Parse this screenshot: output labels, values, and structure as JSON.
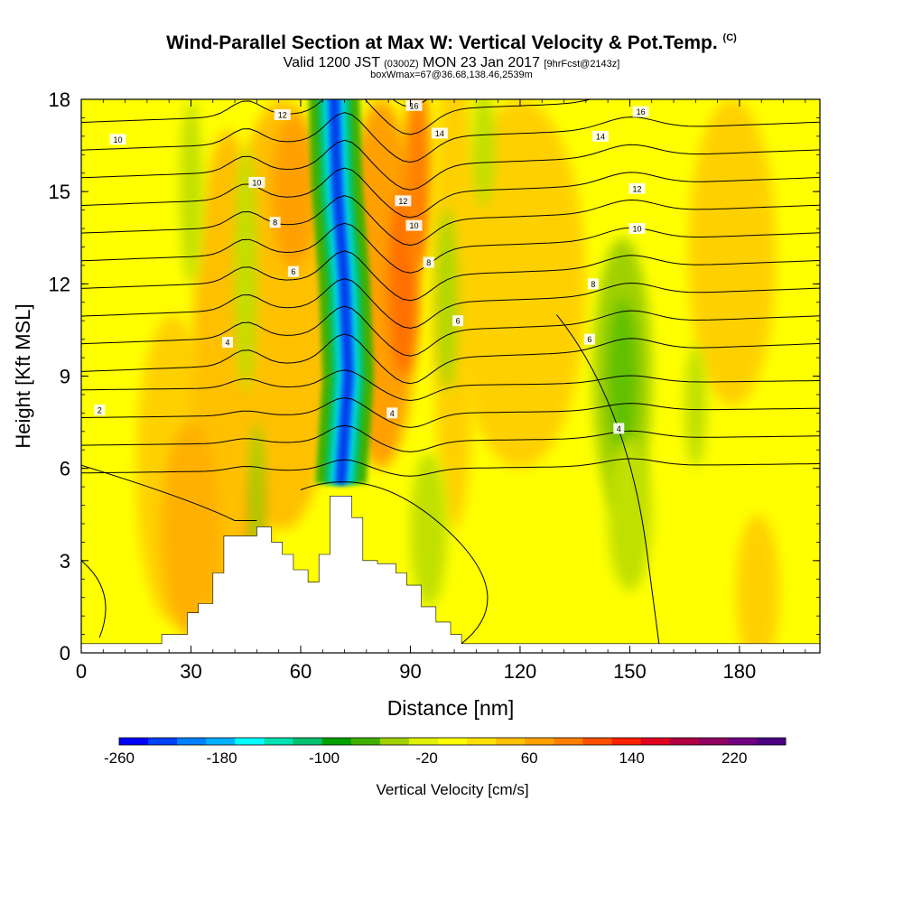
{
  "header": {
    "title_main": "Wind-Parallel Section at Max W: Vertical Velocity & Pot.Temp.",
    "title_tag": "(C)",
    "line2_a": "Valid 1200 JST",
    "line2_b": "(0300Z)",
    "line2_c": "MON 23 Jan 2017",
    "line2_d": "[9hrFcst@2143z]",
    "line3": "boxWmax=67@36.68,138.46,2539m"
  },
  "chart_data": {
    "type": "heatmap",
    "xlabel": "Distance [nm]",
    "ylabel": "Height [Kft MSL]",
    "xlim": [
      0,
      202
    ],
    "ylim": [
      0,
      18
    ],
    "x_ticks": [
      0,
      30,
      60,
      90,
      120,
      150,
      180
    ],
    "y_ticks": [
      0,
      3,
      6,
      9,
      12,
      15,
      18
    ],
    "colorbar": {
      "label": "Vertical Velocity [cm/s]",
      "min": -260,
      "max": 260,
      "tick_labels": [
        -260,
        -180,
        -100,
        -20,
        60,
        140,
        220
      ],
      "colors": [
        "#0000ff",
        "#0040ff",
        "#0080ff",
        "#00b0ff",
        "#00ffff",
        "#00e0b0",
        "#00c070",
        "#00a000",
        "#40b000",
        "#a0d000",
        "#e0f000",
        "#ffff00",
        "#ffe000",
        "#ffc000",
        "#ffa000",
        "#ff8000",
        "#ff5000",
        "#ff2000",
        "#e00020",
        "#b00040",
        "#900060",
        "#700080",
        "#4b0082"
      ]
    },
    "terrain": {
      "x": [
        0,
        22,
        22,
        29,
        29,
        32,
        32,
        36,
        36,
        39,
        39,
        48,
        48,
        52,
        52,
        55,
        55,
        58,
        58,
        62,
        62,
        65,
        65,
        68,
        68,
        74,
        74,
        77,
        77,
        81,
        81,
        86,
        86,
        89,
        89,
        93,
        93,
        97,
        97,
        101,
        101,
        104,
        104,
        202
      ],
      "y": [
        0.3,
        0.3,
        0.6,
        0.6,
        1.3,
        1.3,
        1.6,
        1.6,
        2.6,
        2.6,
        3.8,
        3.8,
        4.1,
        4.1,
        3.6,
        3.6,
        3.2,
        3.2,
        2.7,
        2.7,
        2.3,
        2.3,
        3.2,
        3.2,
        5.1,
        5.1,
        4.4,
        4.4,
        3.0,
        3.0,
        2.9,
        2.9,
        2.6,
        2.6,
        2.2,
        2.2,
        1.5,
        1.5,
        1.0,
        1.0,
        0.6,
        0.6,
        0.3,
        0.3
      ]
    },
    "w_features": [
      {
        "sign": "negative",
        "x": 72,
        "y": 13.5,
        "peak_cms": -260
      },
      {
        "sign": "positive",
        "x": 88,
        "y": 12.0,
        "peak_cms": 120
      },
      {
        "sign": "negative",
        "x": 150,
        "y": 9.0,
        "peak_cms": -60
      }
    ],
    "theta_contour_labels": [
      {
        "text": "2",
        "x": 5,
        "y": 7.9
      },
      {
        "text": "4",
        "x": 40,
        "y": 10.1
      },
      {
        "text": "6",
        "x": 58,
        "y": 12.4
      },
      {
        "text": "8",
        "x": 53,
        "y": 14.0
      },
      {
        "text": "10",
        "x": 48,
        "y": 15.3
      },
      {
        "text": "10",
        "x": 10,
        "y": 16.7
      },
      {
        "text": "12",
        "x": 55,
        "y": 17.5
      },
      {
        "text": "4",
        "x": 85,
        "y": 7.8
      },
      {
        "text": "6",
        "x": 103,
        "y": 10.8
      },
      {
        "text": "8",
        "x": 95,
        "y": 12.7
      },
      {
        "text": "10",
        "x": 91,
        "y": 13.9
      },
      {
        "text": "12",
        "x": 88,
        "y": 14.7
      },
      {
        "text": "14",
        "x": 98,
        "y": 16.9
      },
      {
        "text": "16",
        "x": 91,
        "y": 17.8
      },
      {
        "text": "4",
        "x": 147,
        "y": 7.3
      },
      {
        "text": "6",
        "x": 139,
        "y": 10.2
      },
      {
        "text": "8",
        "x": 140,
        "y": 12.0
      },
      {
        "text": "10",
        "x": 152,
        "y": 13.8
      },
      {
        "text": "12",
        "x": 152,
        "y": 15.1
      },
      {
        "text": "14",
        "x": 142,
        "y": 16.8
      },
      {
        "text": "16",
        "x": 153,
        "y": 17.6
      }
    ]
  }
}
